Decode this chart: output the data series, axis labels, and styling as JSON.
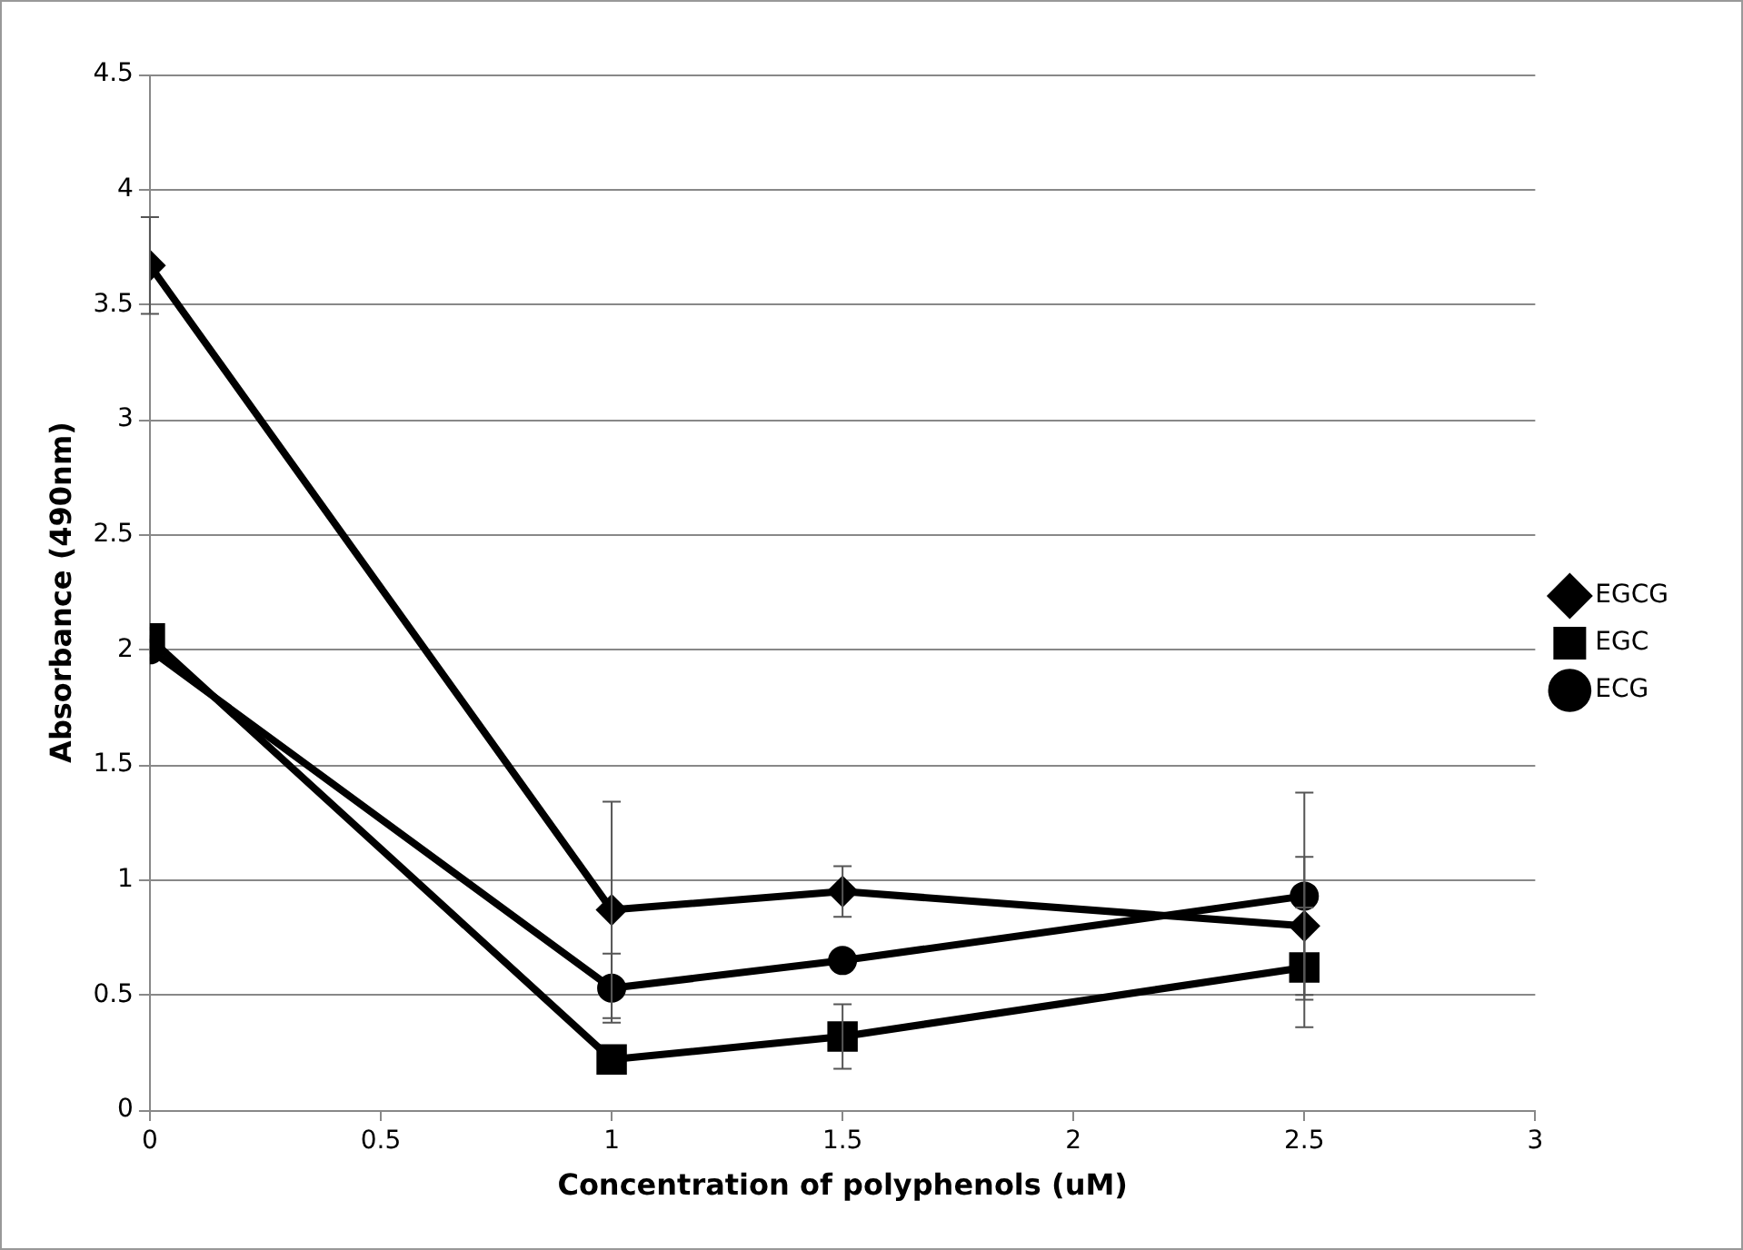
{
  "chart_data": {
    "type": "line",
    "xlabel": "Concentration of polyphenols (uM)",
    "ylabel": "Absorbance (490nm)",
    "x": [
      0,
      1,
      1.5,
      2.5
    ],
    "series": [
      {
        "name": "EGCG",
        "color": "#000000",
        "marker": "diamond",
        "values": [
          3.67,
          0.87,
          0.95,
          0.8
        ],
        "errors": [
          0.21,
          0.47,
          0.11,
          0.3
        ]
      },
      {
        "name": "EGC",
        "color": "#000000",
        "marker": "square",
        "values": [
          2.05,
          0.22,
          0.32,
          0.62
        ],
        "errors": [
          null,
          null,
          0.14,
          0.26
        ]
      },
      {
        "name": "ECG",
        "color": "#000000",
        "marker": "circle",
        "values": [
          2.0,
          0.53,
          0.65,
          0.93
        ],
        "errors": [
          null,
          0.15,
          null,
          0.45
        ]
      }
    ],
    "xlim": [
      0,
      3
    ],
    "xticks": [
      0,
      0.5,
      1,
      1.5,
      2,
      2.5,
      3
    ],
    "ylim": [
      0,
      4.5
    ],
    "yticks": [
      0,
      0.5,
      1,
      1.5,
      2,
      2.5,
      3,
      3.5,
      4,
      4.5
    ],
    "grid": "y",
    "legend": "right",
    "line_style": "solid"
  }
}
